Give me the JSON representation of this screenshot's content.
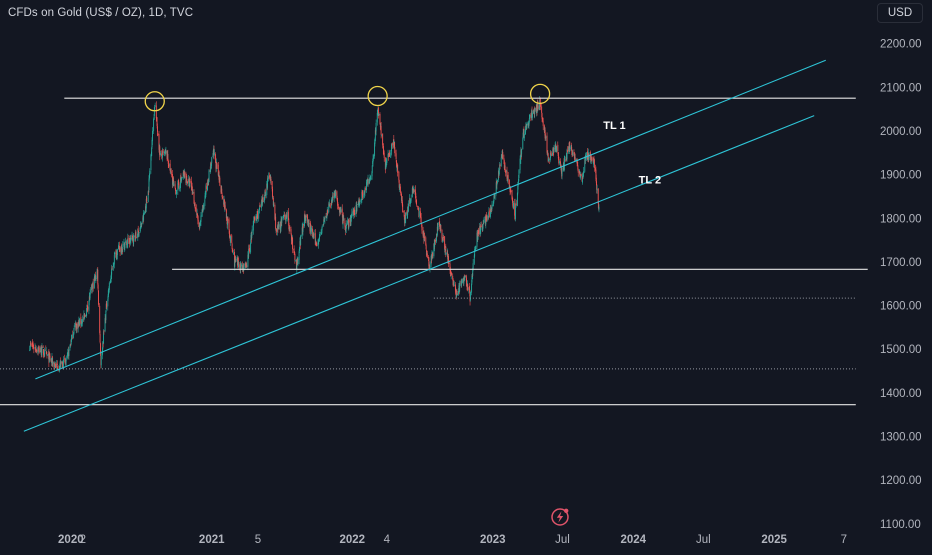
{
  "header": {
    "symbol_title": "CFDs on Gold (US$ / OZ), 1D, TVC",
    "currency": "USD"
  },
  "colors": {
    "background": "#131722",
    "up_candle": "#26a69a",
    "down_candle": "#ef5350",
    "trendline": "#2ec4d6",
    "level_line": "#e6e6e6",
    "circle": "#f0d44a",
    "logo": "#e0546a",
    "axis_text": "#b2b5be"
  },
  "chart_data": {
    "type": "candlestick",
    "title": "CFDs on Gold (US$ / OZ), 1D, TVC",
    "y_axis": {
      "labels": [
        "2200.00",
        "2100.00",
        "2000.00",
        "1900.00",
        "1800.00",
        "1700.00",
        "1600.00",
        "1500.00",
        "1400.00",
        "1300.00",
        "1200.00",
        "1100.00"
      ],
      "values": [
        2200,
        2100,
        2000,
        1900,
        1800,
        1700,
        1600,
        1500,
        1400,
        1300,
        1200,
        1100
      ],
      "range": [
        1040,
        2300
      ]
    },
    "x_axis": {
      "tick_labels": [
        {
          "label": "2020",
          "date": "2020-01",
          "bold": true
        },
        {
          "label": "2",
          "date": "2020-02",
          "bold": false
        },
        {
          "label": "2021",
          "date": "2021-01",
          "bold": true
        },
        {
          "label": "5",
          "date": "2021-05",
          "bold": false
        },
        {
          "label": "2022",
          "date": "2022-01",
          "bold": true
        },
        {
          "label": "4",
          "date": "2022-04",
          "bold": false
        },
        {
          "label": "2023",
          "date": "2023-01",
          "bold": true
        },
        {
          "label": "Jul",
          "date": "2023-07",
          "bold": false
        },
        {
          "label": "2024",
          "date": "2024-01",
          "bold": true
        },
        {
          "label": "Jul",
          "date": "2024-07",
          "bold": false
        },
        {
          "label": "2025",
          "date": "2025-01",
          "bold": true
        },
        {
          "label": "7",
          "date": "2025-07",
          "bold": false
        }
      ]
    },
    "price_path": [
      [
        "2019-09-15",
        1510
      ],
      [
        "2019-10-20",
        1495
      ],
      [
        "2019-11-25",
        1460
      ],
      [
        "2019-12-20",
        1470
      ],
      [
        "2020-01-10",
        1550
      ],
      [
        "2020-02-05",
        1570
      ],
      [
        "2020-02-25",
        1640
      ],
      [
        "2020-03-10",
        1680
      ],
      [
        "2020-03-19",
        1470
      ],
      [
        "2020-04-05",
        1620
      ],
      [
        "2020-04-25",
        1720
      ],
      [
        "2020-05-20",
        1740
      ],
      [
        "2020-06-20",
        1760
      ],
      [
        "2020-07-05",
        1790
      ],
      [
        "2020-07-20",
        1860
      ],
      [
        "2020-08-06",
        2065
      ],
      [
        "2020-08-20",
        1940
      ],
      [
        "2020-09-05",
        1950
      ],
      [
        "2020-09-28",
        1860
      ],
      [
        "2020-10-20",
        1900
      ],
      [
        "2020-11-10",
        1870
      ],
      [
        "2020-11-30",
        1775
      ],
      [
        "2020-12-20",
        1880
      ],
      [
        "2021-01-06",
        1950
      ],
      [
        "2021-02-01",
        1840
      ],
      [
        "2021-03-01",
        1700
      ],
      [
        "2021-03-31",
        1685
      ],
      [
        "2021-04-20",
        1790
      ],
      [
        "2021-05-15",
        1840
      ],
      [
        "2021-06-01",
        1905
      ],
      [
        "2021-06-18",
        1770
      ],
      [
        "2021-07-15",
        1810
      ],
      [
        "2021-08-09",
        1690
      ],
      [
        "2021-08-30",
        1810
      ],
      [
        "2021-09-30",
        1740
      ],
      [
        "2021-11-15",
        1860
      ],
      [
        "2021-12-15",
        1775
      ],
      [
        "2022-01-20",
        1840
      ],
      [
        "2022-02-20",
        1900
      ],
      [
        "2022-03-08",
        2055
      ],
      [
        "2022-03-28",
        1920
      ],
      [
        "2022-04-18",
        1980
      ],
      [
        "2022-05-16",
        1795
      ],
      [
        "2022-06-10",
        1870
      ],
      [
        "2022-07-21",
        1690
      ],
      [
        "2022-08-15",
        1790
      ],
      [
        "2022-09-28",
        1625
      ],
      [
        "2022-10-21",
        1670
      ],
      [
        "2022-11-03",
        1620
      ],
      [
        "2022-11-20",
        1760
      ],
      [
        "2022-12-31",
        1825
      ],
      [
        "2023-01-26",
        1945
      ],
      [
        "2023-02-28",
        1810
      ],
      [
        "2023-03-20",
        1990
      ],
      [
        "2023-04-13",
        2040
      ],
      [
        "2023-05-04",
        2065
      ],
      [
        "2023-05-25",
        1940
      ],
      [
        "2023-06-15",
        1960
      ],
      [
        "2023-06-29",
        1900
      ],
      [
        "2023-07-20",
        1970
      ],
      [
        "2023-08-21",
        1890
      ],
      [
        "2023-09-01",
        1945
      ],
      [
        "2023-09-22",
        1925
      ],
      [
        "2023-10-04",
        1822
      ]
    ],
    "drawings": {
      "horizontal_levels": [
        {
          "name": "top-resistance-line",
          "price": 2075,
          "from": "2019-12-15",
          "to": "2025-08-01",
          "style": "solid"
        },
        {
          "name": "mid-support-line",
          "price": 1683,
          "from": "2020-09-20",
          "to": "2025-09-01",
          "style": "solid"
        },
        {
          "name": "low-dotted-line",
          "price": 1617,
          "from": "2022-08-01",
          "to": "2025-08-01",
          "style": "dotted"
        },
        {
          "name": "march-low-dotted-line",
          "price": 1455,
          "from": "2019-07-01",
          "to": "2025-08-01",
          "style": "dotted"
        },
        {
          "name": "bottom-support-line",
          "price": 1373,
          "from": "2019-07-01",
          "to": "2025-08-01",
          "style": "solid"
        }
      ],
      "trend_lines": [
        {
          "name": "trendline-tl1",
          "label": "TL 1",
          "p1": [
            "2019-10-01",
            1432
          ],
          "p2": [
            "2025-05-15",
            2162
          ],
          "label_at": [
            "2023-10-15",
            2005
          ]
        },
        {
          "name": "trendline-tl2",
          "label": "TL 2",
          "p1": [
            "2019-09-01",
            1312
          ],
          "p2": [
            "2025-04-15",
            2035
          ],
          "label_at": [
            "2024-01-15",
            1880
          ]
        }
      ],
      "circled_peaks": [
        {
          "name": "peak-circle-2020",
          "date": "2020-08-06",
          "price": 2068
        },
        {
          "name": "peak-circle-2022",
          "date": "2022-03-08",
          "price": 2080
        },
        {
          "name": "peak-circle-2023",
          "date": "2023-05-04",
          "price": 2085
        }
      ]
    }
  }
}
